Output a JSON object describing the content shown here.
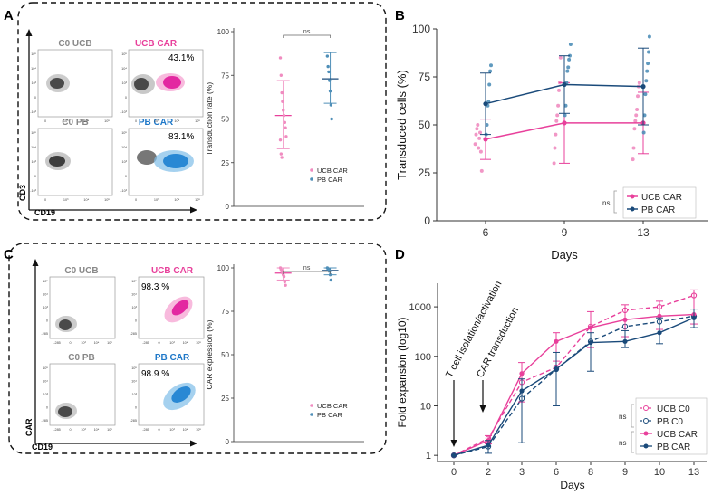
{
  "colors": {
    "ucb": "#e8409b",
    "pb": "#1a4a7a",
    "pb_dot": "#4f8fb8",
    "ucb_light": "#f08cc0",
    "gray": "#666666",
    "flow_blue": "#1f78c8"
  },
  "panels": {
    "A": {
      "letter": "A",
      "flow_titles": [
        "C0 UCB",
        "UCB CAR",
        "C0 PB",
        "PB CAR"
      ],
      "percent_ucb": "43.1%",
      "percent_pb": "83.1%",
      "y_marker": "CD3",
      "x_marker": "CD19",
      "ticks_y": [
        "10⁵",
        "10⁴",
        "10³",
        "0",
        "-10³"
      ],
      "ticks_x": [
        "0",
        "10³",
        "10⁴",
        "10⁵"
      ]
    },
    "C": {
      "letter": "C",
      "flow_titles": [
        "C0 UCB",
        "UCB CAR",
        "C0 PB",
        "PB CAR"
      ],
      "percent_ucb": "98.3 %",
      "percent_pb": "98.9 %",
      "y_marker": "CAR",
      "x_marker": "CD19",
      "ticks_y": [
        "10⁵",
        "10⁴",
        "10³",
        "0",
        "-285"
      ],
      "ticks_x": [
        "-285",
        "0",
        "10³",
        "10⁴",
        "10⁵"
      ]
    },
    "B": {
      "letter": "B"
    },
    "D": {
      "letter": "D"
    }
  },
  "chart_data": [
    {
      "id": "A-dot",
      "type": "scatter",
      "title": "",
      "ylabel": "Transduction rate (%)",
      "xlabel": "",
      "ylim": [
        0,
        100
      ],
      "yticks": [
        0,
        25,
        50,
        75,
        100
      ],
      "significance": "ns",
      "legend": [
        "UCB CAR",
        "PB CAR"
      ],
      "legend_position": "bottom-right",
      "series": [
        {
          "name": "UCB CAR",
          "mean": 52,
          "sd_low": 33,
          "sd_high": 72,
          "points": [
            85,
            75,
            65,
            60,
            55,
            52,
            48,
            45,
            40,
            38,
            30,
            28
          ]
        },
        {
          "name": "PB CAR",
          "mean": 73,
          "sd_low": 59,
          "sd_high": 88,
          "points": [
            86,
            80,
            77,
            72,
            66,
            58,
            50
          ]
        }
      ]
    },
    {
      "id": "B",
      "type": "line",
      "ylabel": "Transduced cells (%)",
      "xlabel": "Days",
      "categories": [
        "6",
        "9",
        "13"
      ],
      "ylim": [
        0,
        100
      ],
      "yticks": [
        0,
        25,
        50,
        75,
        100
      ],
      "significance": "ns",
      "legend_position": "bottom-right",
      "series": [
        {
          "name": "UCB CAR",
          "values": [
            42.5,
            51,
            51
          ],
          "err_low": [
            32,
            30,
            35
          ],
          "err_high": [
            53,
            72,
            67
          ],
          "points": [
            [
              40,
              45,
              48,
              50,
              38,
              43,
              46,
              36,
              26
            ],
            [
              30,
              38,
              45,
              52,
              55,
              60,
              68,
              72,
              85
            ],
            [
              32,
              38,
              48,
              52,
              55,
              58,
              65,
              70,
              72
            ]
          ]
        },
        {
          "name": "PB CAR",
          "values": [
            61,
            71,
            70
          ],
          "err_low": [
            45,
            56,
            50
          ],
          "err_high": [
            77,
            86,
            90
          ],
          "points": [
            [
              45,
              50,
              60,
              62,
              71,
              78,
              81
            ],
            [
              55,
              60,
              72,
              78,
              80,
              84,
              86,
              92
            ],
            [
              46,
              55,
              66,
              73,
              78,
              82,
              88,
              96
            ]
          ]
        }
      ]
    },
    {
      "id": "C-dot",
      "type": "scatter",
      "title": "",
      "ylabel": "CAR expression (%)",
      "xlabel": "",
      "ylim": [
        0,
        100
      ],
      "yticks": [
        0,
        25,
        50,
        75,
        100
      ],
      "significance": "ns",
      "legend": [
        "UCB CAR",
        "PB CAR"
      ],
      "legend_position": "bottom-right",
      "series": [
        {
          "name": "UCB CAR",
          "mean": 97,
          "sd_low": 93,
          "sd_high": 100,
          "points": [
            100,
            99,
            98,
            97,
            96,
            95,
            92,
            90
          ]
        },
        {
          "name": "PB CAR",
          "mean": 98.5,
          "sd_low": 96,
          "sd_high": 100,
          "points": [
            100,
            99.5,
            99,
            98,
            96,
            93
          ]
        }
      ]
    },
    {
      "id": "D",
      "type": "line",
      "yscale": "log",
      "ylabel": "Fold expansion (log10)",
      "xlabel": "Days",
      "categories": [
        "0",
        "2",
        "3",
        "6",
        "8",
        "9",
        "10",
        "13"
      ],
      "yticks": [
        1,
        10,
        100,
        1000
      ],
      "ylim": [
        0.75,
        3000
      ],
      "annotations": [
        "T cell isolation/activation",
        "CAR transduction"
      ],
      "annotation_days": [
        0,
        2
      ],
      "significance": [
        "ns",
        "ns"
      ],
      "legend_position": "bottom-right",
      "series": [
        {
          "name": "UCB C0",
          "style": "dashed-open",
          "values": [
            1,
            2.2,
            30,
            60,
            400,
            850,
            1000,
            1700
          ]
        },
        {
          "name": "PB C0",
          "style": "dashed-open",
          "values": [
            1,
            1.5,
            14,
            55,
            200,
            400,
            500,
            650
          ]
        },
        {
          "name": "UCB CAR",
          "style": "solid-filled",
          "values": [
            1,
            2.0,
            45,
            200,
            380,
            550,
            650,
            700
          ],
          "err_low": [
            1,
            1.7,
            12,
            80,
            150,
            250,
            350,
            450
          ],
          "err_high": [
            1,
            2.5,
            75,
            300,
            800,
            1100,
            1300,
            2200
          ]
        },
        {
          "name": "PB CAR",
          "style": "solid-filled",
          "values": [
            1,
            1.6,
            20,
            55,
            190,
            200,
            300,
            600
          ],
          "err_low": [
            1,
            1.1,
            1.8,
            10,
            50,
            150,
            180,
            380
          ],
          "err_high": [
            1,
            2.0,
            35,
            120,
            300,
            330,
            600,
            900
          ]
        }
      ]
    }
  ]
}
